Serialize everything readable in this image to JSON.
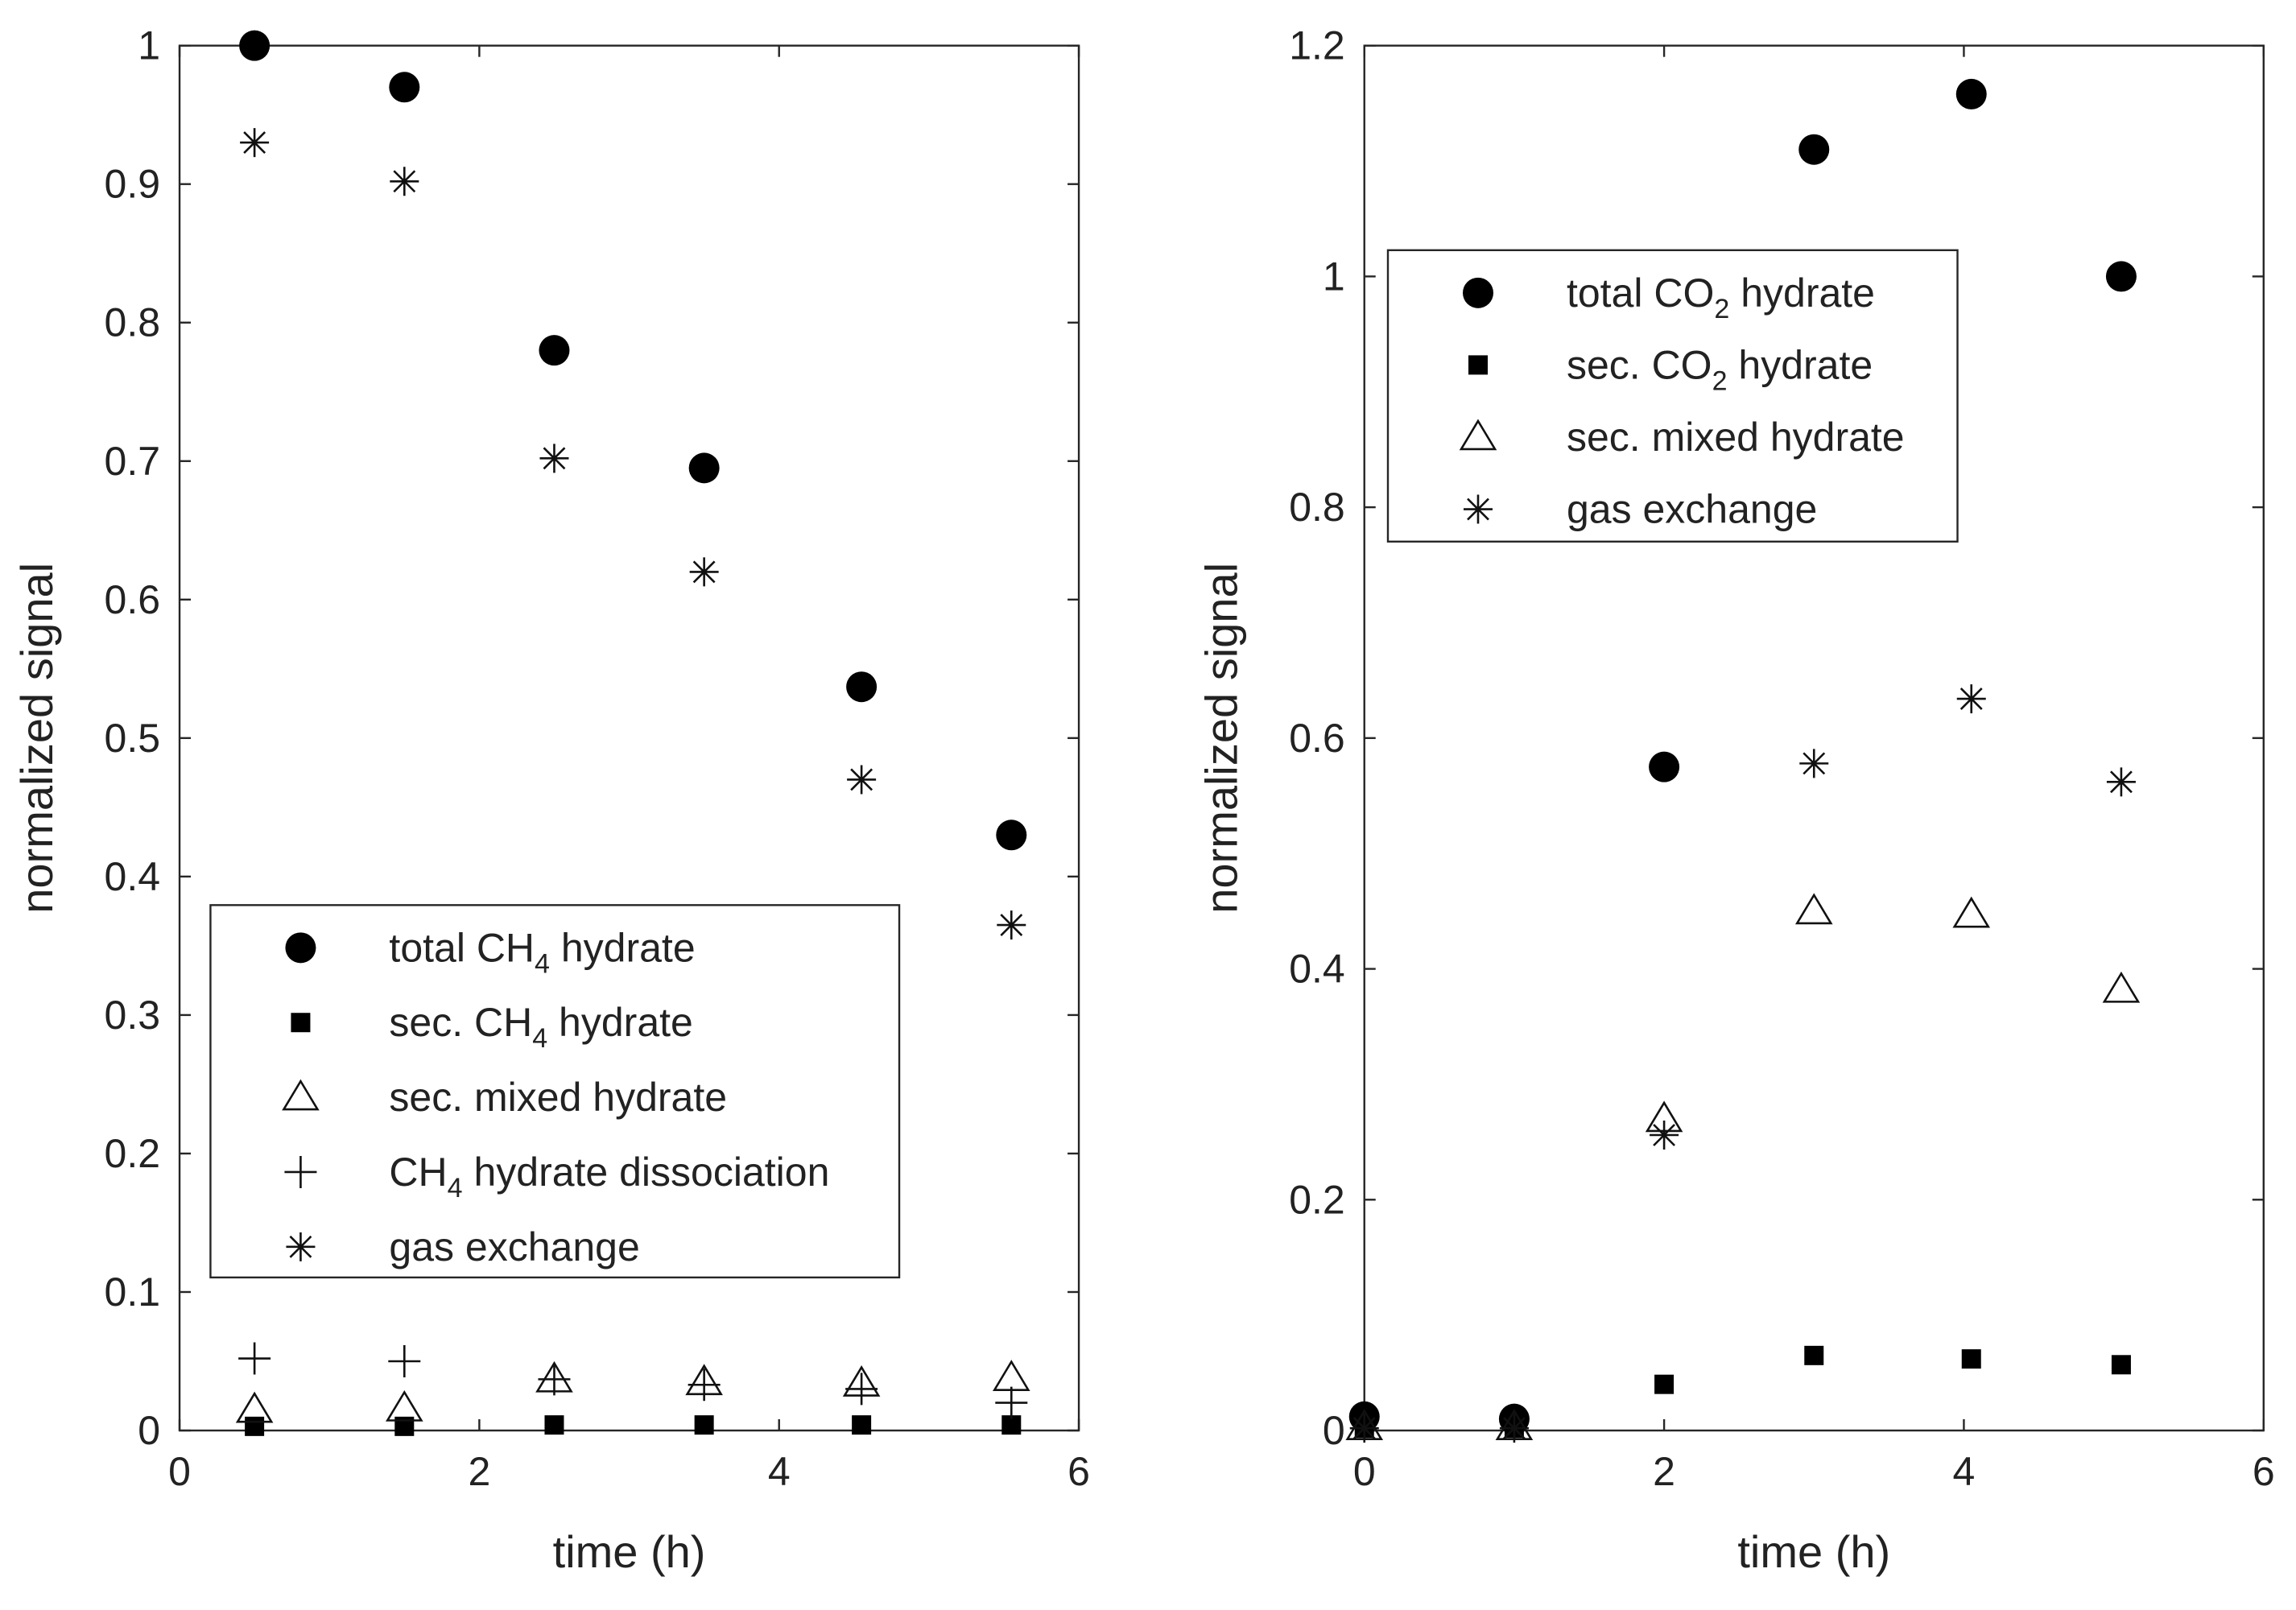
{
  "chart_data": [
    {
      "type": "scatter",
      "id": "left",
      "xlabel": "time (h)",
      "ylabel": "normalized signal",
      "xlim": [
        0,
        6
      ],
      "ylim": [
        0,
        1
      ],
      "xticks": [
        0,
        2,
        4,
        6
      ],
      "yticks": [
        0,
        0.1,
        0.2,
        0.3,
        0.4,
        0.5,
        0.6,
        0.7,
        0.8,
        0.9,
        1
      ],
      "xtick_labels": [
        "0",
        "2",
        "4",
        "6"
      ],
      "ytick_labels": [
        "0",
        "0.1",
        "0.2",
        "0.3",
        "0.4",
        "0.5",
        "0.6",
        "0.7",
        "0.8",
        "0.9",
        "1"
      ],
      "legend_position": "lower-left",
      "series": [
        {
          "name": "total CH4 hydrate",
          "label_parts": [
            [
              "total CH",
              false
            ],
            [
              "4",
              true
            ],
            [
              " hydrate",
              false
            ]
          ],
          "marker": "circle",
          "x": [
            0.5,
            1.5,
            2.5,
            3.5,
            4.55,
            5.55
          ],
          "y": [
            1.0,
            0.97,
            0.78,
            0.695,
            0.537,
            0.43
          ]
        },
        {
          "name": "sec. CH4 hydrate",
          "label_parts": [
            [
              "sec. CH",
              false
            ],
            [
              "4",
              true
            ],
            [
              " hydrate",
              false
            ]
          ],
          "marker": "square",
          "x": [
            0.5,
            1.5,
            2.5,
            3.5,
            4.55,
            5.55
          ],
          "y": [
            0.003,
            0.003,
            0.004,
            0.004,
            0.004,
            0.004
          ]
        },
        {
          "name": "sec. mixed hydrate",
          "label_parts": [
            [
              "sec. mixed hydrate",
              false
            ]
          ],
          "marker": "triangle",
          "x": [
            0.5,
            1.5,
            2.5,
            3.5,
            4.55,
            5.55
          ],
          "y": [
            0.015,
            0.016,
            0.037,
            0.035,
            0.034,
            0.038
          ]
        },
        {
          "name": "CH4 hydrate dissociation",
          "label_parts": [
            [
              "CH",
              false
            ],
            [
              "4",
              true
            ],
            [
              " hydrate dissociation",
              false
            ]
          ],
          "marker": "plus",
          "x": [
            0.5,
            1.5,
            2.5,
            3.5,
            4.55,
            5.55
          ],
          "y": [
            0.052,
            0.05,
            0.037,
            0.033,
            0.03,
            0.02
          ]
        },
        {
          "name": "gas exchange",
          "label_parts": [
            [
              "gas exchange",
              false
            ]
          ],
          "marker": "asterisk",
          "x": [
            0.5,
            1.5,
            2.5,
            3.5,
            4.55,
            5.55
          ],
          "y": [
            0.93,
            0.902,
            0.702,
            0.62,
            0.47,
            0.365
          ]
        }
      ]
    },
    {
      "type": "scatter",
      "id": "right",
      "xlabel": "time (h)",
      "ylabel": "normalized signal",
      "xlim": [
        0,
        6
      ],
      "ylim": [
        0,
        1.2
      ],
      "xticks": [
        0,
        2,
        4,
        6
      ],
      "yticks": [
        0,
        0.2,
        0.4,
        0.6,
        0.8,
        1.0,
        1.2
      ],
      "xtick_labels": [
        "0",
        "2",
        "4",
        "6"
      ],
      "ytick_labels": [
        "0",
        "0.2",
        "0.4",
        "0.6",
        "0.8",
        "1",
        "1.2"
      ],
      "legend_position": "upper-left",
      "series": [
        {
          "name": "total CO2 hydrate",
          "label_parts": [
            [
              "total CO",
              false
            ],
            [
              "2",
              true
            ],
            [
              " hydrate",
              false
            ]
          ],
          "marker": "circle",
          "x": [
            0,
            1,
            2,
            3,
            4.05,
            5.05
          ],
          "y": [
            0.012,
            0.01,
            0.575,
            1.11,
            1.158,
            1.0
          ]
        },
        {
          "name": "sec. CO2 hydrate",
          "label_parts": [
            [
              "sec. CO",
              false
            ],
            [
              "2",
              true
            ],
            [
              " hydrate",
              false
            ]
          ],
          "marker": "square",
          "x": [
            0,
            1,
            2,
            3,
            4.05,
            5.05
          ],
          "y": [
            0.002,
            0.002,
            0.04,
            0.065,
            0.062,
            0.057
          ]
        },
        {
          "name": "sec. mixed hydrate",
          "label_parts": [
            [
              "sec. mixed hydrate",
              false
            ]
          ],
          "marker": "triangle",
          "x": [
            0,
            1,
            2,
            3,
            4.05,
            5.05
          ],
          "y": [
            0.003,
            0.003,
            0.27,
            0.45,
            0.447,
            0.382
          ]
        },
        {
          "name": "gas exchange",
          "label_parts": [
            [
              "gas exchange",
              false
            ]
          ],
          "marker": "asterisk",
          "x": [
            0,
            1,
            2,
            3,
            4.05,
            5.05
          ],
          "y": [
            0.002,
            0.002,
            0.256,
            0.578,
            0.634,
            0.562
          ]
        }
      ]
    }
  ]
}
